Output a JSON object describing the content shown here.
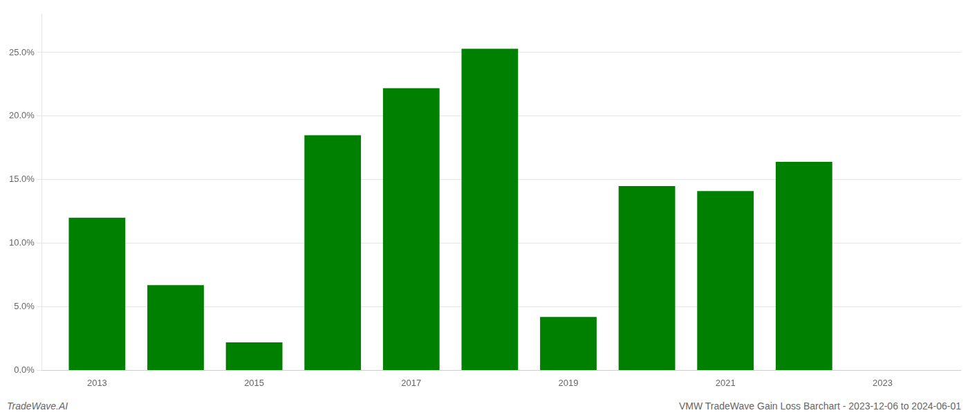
{
  "chart_data": {
    "type": "bar",
    "x": [
      2013,
      2014,
      2015,
      2016,
      2017,
      2018,
      2019,
      2020,
      2021,
      2022
    ],
    "values": [
      0.12,
      0.067,
      0.022,
      0.185,
      0.222,
      0.253,
      0.042,
      0.145,
      0.141,
      0.164
    ],
    "color": "#008000",
    "xlim": [
      2012.3,
      2024.0
    ],
    "xticks": [
      2013,
      2015,
      2017,
      2019,
      2021,
      2023
    ],
    "ylim": [
      0,
      0.28
    ],
    "yticks": [
      {
        "value": 0.0,
        "label": "0.0%"
      },
      {
        "value": 0.05,
        "label": "5.0%"
      },
      {
        "value": 0.1,
        "label": "10.0%"
      },
      {
        "value": 0.15,
        "label": "15.0%"
      },
      {
        "value": 0.2,
        "label": "20.0%"
      },
      {
        "value": 0.25,
        "label": "25.0%"
      }
    ],
    "grid": true,
    "annotations": [
      "TradeWave.AI",
      "VMW TradeWave Gain Loss Barchart - 2023-12-06 to 2024-06-01"
    ]
  }
}
